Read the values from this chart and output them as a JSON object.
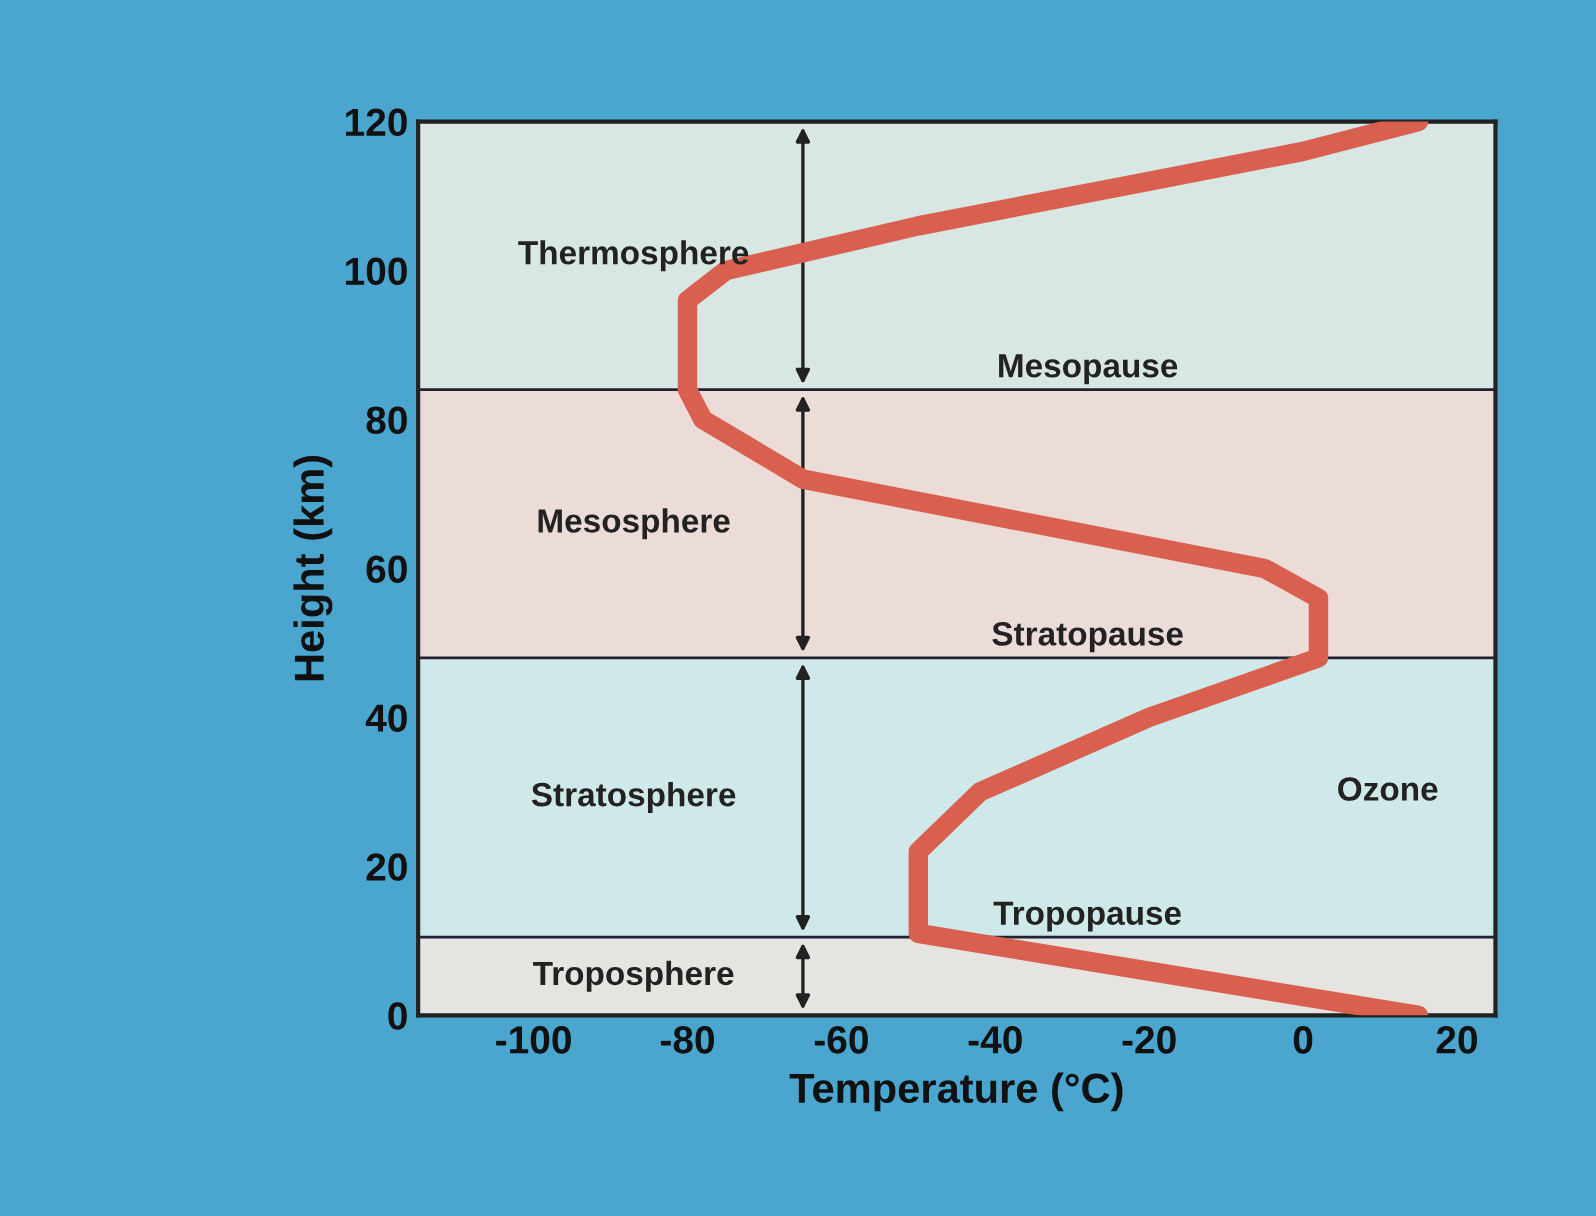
{
  "chart_data": {
    "type": "line",
    "xlabel": "Temperature (°C)",
    "ylabel": "Height (km)",
    "xlim": [
      -115,
      25
    ],
    "ylim": [
      0,
      120
    ],
    "xticks": [
      -100,
      -80,
      -60,
      -40,
      -20,
      0,
      20
    ],
    "yticks": [
      0,
      20,
      40,
      60,
      80,
      100,
      120
    ],
    "legend": false,
    "series": [
      {
        "color": "#d9604f",
        "x": [
          15,
          -50,
          -50,
          -42,
          -20,
          2,
          2,
          -5,
          -35,
          -65,
          -78,
          -80,
          -80,
          -75,
          -50,
          -20,
          0,
          15
        ],
        "values": [
          0,
          11,
          22,
          30,
          40,
          48,
          56,
          60,
          66,
          72,
          80,
          84,
          96,
          100,
          106,
          112,
          116,
          120
        ]
      }
    ],
    "ref_lines": [
      {
        "axis": "y",
        "value": 10.5,
        "label": "Tropopause"
      },
      {
        "axis": "y",
        "value": 48,
        "label": "Stratopause"
      },
      {
        "axis": "y",
        "value": 84,
        "label": "Mesopause"
      }
    ],
    "bands": [
      {
        "axis": "y",
        "from": 0,
        "to": 10.5,
        "label": "Troposphere",
        "color": "#e6e4e0"
      },
      {
        "axis": "y",
        "from": 10.5,
        "to": 48,
        "label": "Stratosphere",
        "color": "#cfe9ea"
      },
      {
        "axis": "y",
        "from": 48,
        "to": 84,
        "label": "Mesosphere",
        "color": "#ecdcd8"
      },
      {
        "axis": "y",
        "from": 84,
        "to": 120,
        "label": "Thermosphere",
        "color": "#d8e6e4"
      }
    ],
    "annotations": [
      "Ozone"
    ]
  }
}
